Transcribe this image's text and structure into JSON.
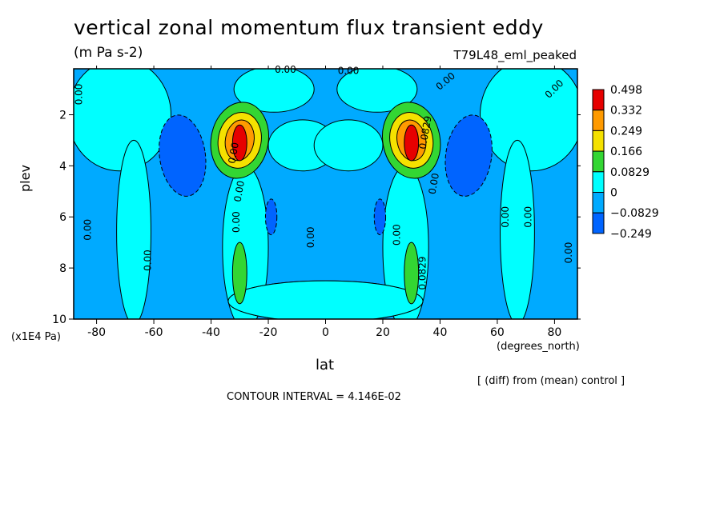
{
  "chart_data": {
    "type": "heatmap",
    "title": "vertical zonal momentum flux transient eddy",
    "units": "(m Pa s-2)",
    "experiment": "T79L48_eml_peaked",
    "xlabel": "lat",
    "x_units": "(degrees_north)",
    "ylabel": "plev",
    "y_units": "(x1E4 Pa)",
    "xlim": [
      -88,
      88
    ],
    "ylim": [
      10,
      0.2
    ],
    "x_ticks": [
      "-80",
      "-60",
      "-40",
      "-20",
      "0",
      "20",
      "40",
      "60",
      "80"
    ],
    "x_tick_values": [
      -80,
      -60,
      -40,
      -20,
      0,
      20,
      40,
      60,
      80
    ],
    "y_ticks": [
      "2",
      "4",
      "6",
      "8",
      "10"
    ],
    "y_tick_values": [
      2,
      4,
      6,
      8,
      10
    ],
    "note": "[ (diff) from (mean) control ]",
    "contour_interval": "CONTOUR INTERVAL = 4.146E-02",
    "legend": {
      "placement": "right",
      "levels": [
        "0.498",
        "0.332",
        "0.249",
        "0.166",
        "0.0829",
        "0",
        "−0.0829",
        "−0.249"
      ],
      "colors": [
        "#e60000",
        "#ff9a00",
        "#f5e100",
        "#33d633",
        "#00ffff",
        "#00aaff",
        "#0064ff"
      ]
    },
    "contour_labels": [
      {
        "text": "0.00",
        "lat": -86,
        "p": 1.2,
        "rot": -90
      },
      {
        "text": "0.00",
        "lat": 80,
        "p": 1.0,
        "rot": -45
      },
      {
        "text": "0.00",
        "lat": 42,
        "p": 0.7,
        "rot": -40
      },
      {
        "text": "0.00",
        "lat": -14,
        "p": 0.1,
        "rot": 0
      },
      {
        "text": "0.00",
        "lat": 8,
        "p": 0.3,
        "rot": 0
      },
      {
        "text": "0.00",
        "lat": -32,
        "p": 3.5,
        "rot": -80
      },
      {
        "text": "0.00",
        "lat": -30,
        "p": 5.0,
        "rot": -80
      },
      {
        "text": "0.0829",
        "lat": 35,
        "p": 2.7,
        "rot": -80
      },
      {
        "text": "0.00",
        "lat": 38,
        "p": 4.7,
        "rot": -80
      },
      {
        "text": "0.00",
        "lat": -83,
        "p": 6.5,
        "rot": -90
      },
      {
        "text": "0.00",
        "lat": -62,
        "p": 7.7,
        "rot": -90
      },
      {
        "text": "0.00",
        "lat": -31,
        "p": 6.2,
        "rot": -90
      },
      {
        "text": "0.00",
        "lat": -5,
        "p": 6.8,
        "rot": -90
      },
      {
        "text": "0.00",
        "lat": 25,
        "p": 6.7,
        "rot": -90
      },
      {
        "text": "0.0829",
        "lat": 34,
        "p": 8.2,
        "rot": -90
      },
      {
        "text": "0.00",
        "lat": 63,
        "p": 6.0,
        "rot": -90
      },
      {
        "text": "0.00",
        "lat": 71,
        "p": 6.0,
        "rot": -90
      },
      {
        "text": "0.00",
        "lat": 85,
        "p": 7.4,
        "rot": -90
      }
    ]
  }
}
